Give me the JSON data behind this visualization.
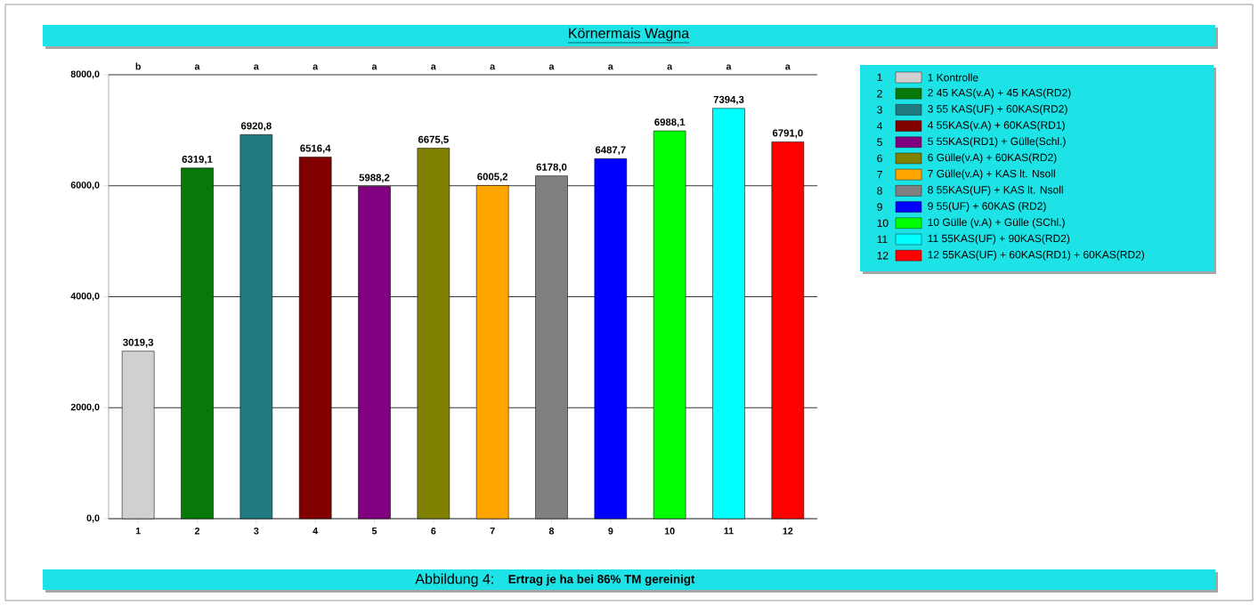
{
  "chart_data": {
    "type": "bar",
    "title": "Körnermais Wagna",
    "categories": [
      "1",
      "2",
      "3",
      "4",
      "5",
      "6",
      "7",
      "8",
      "9",
      "10",
      "11",
      "12"
    ],
    "series": [
      {
        "name": "1 Kontrolle",
        "color": "#d0d0d0",
        "values": [
          3019.3,
          null,
          null,
          null,
          null,
          null,
          null,
          null,
          null,
          null,
          null,
          null
        ]
      },
      {
        "name": "2 45 KAS(v.A) + 45 KAS(RD2)",
        "color": "#087808",
        "values": [
          null,
          6319.1,
          null,
          null,
          null,
          null,
          null,
          null,
          null,
          null,
          null,
          null
        ]
      },
      {
        "name": "3 55 KAS(UF) + 60KAS(RD2)",
        "color": "#1f7a82",
        "values": [
          null,
          null,
          6920.8,
          null,
          null,
          null,
          null,
          null,
          null,
          null,
          null,
          null
        ]
      },
      {
        "name": "4 55KAS(v.A) + 60KAS(RD1)",
        "color": "#800000",
        "values": [
          null,
          null,
          null,
          6516.4,
          null,
          null,
          null,
          null,
          null,
          null,
          null,
          null
        ]
      },
      {
        "name": "5 55KAS(RD1) + Gülle(Schl.)",
        "color": "#800080",
        "values": [
          null,
          null,
          null,
          null,
          5988.2,
          null,
          null,
          null,
          null,
          null,
          null,
          null
        ]
      },
      {
        "name": "6 Gülle(v.A) + 60KAS(RD2)",
        "color": "#808000",
        "values": [
          null,
          null,
          null,
          null,
          null,
          6675.5,
          null,
          null,
          null,
          null,
          null,
          null
        ]
      },
      {
        "name": "7 Gülle(v.A) + KAS lt. Nsoll",
        "color": "#ffa500",
        "values": [
          null,
          null,
          null,
          null,
          null,
          null,
          6005.2,
          null,
          null,
          null,
          null,
          null
        ]
      },
      {
        "name": "8 55KAS(UF) + KAS lt. Nsoll",
        "color": "#808080",
        "values": [
          null,
          null,
          null,
          null,
          null,
          null,
          null,
          6178.0,
          null,
          null,
          null,
          null
        ]
      },
      {
        "name": "9 55(UF) + 60KAS (RD2)",
        "color": "#0000ff",
        "values": [
          null,
          null,
          null,
          null,
          null,
          null,
          null,
          null,
          6487.7,
          null,
          null,
          null
        ]
      },
      {
        "name": "10 Gülle (v.A) + Gülle (SChl.)",
        "color": "#00ff00",
        "values": [
          null,
          null,
          null,
          null,
          null,
          null,
          null,
          null,
          null,
          6988.1,
          null,
          null
        ]
      },
      {
        "name": "11 55KAS(UF) + 90KAS(RD2)",
        "color": "#00ffff",
        "values": [
          null,
          null,
          null,
          null,
          null,
          null,
          null,
          null,
          null,
          null,
          7394.3,
          null
        ]
      },
      {
        "name": "12 55KAS(UF) + 60KAS(RD1) + 60KAS(RD2)",
        "color": "#ff0000",
        "values": [
          null,
          null,
          null,
          null,
          null,
          null,
          null,
          null,
          null,
          null,
          null,
          6791.0
        ]
      }
    ],
    "value_labels": [
      "3019,3",
      "6319,1",
      "6920,8",
      "6516,4",
      "5988,2",
      "6675,5",
      "6005,2",
      "6178,0",
      "6487,7",
      "6988,1",
      "7394,3",
      "6791,0"
    ],
    "ylim": [
      0,
      8000
    ],
    "yticks": [
      {
        "value": 0,
        "label": "0,0"
      },
      {
        "value": 2000,
        "label": "2000,0"
      },
      {
        "value": 4000,
        "label": "4000,0"
      },
      {
        "value": 6000,
        "label": "6000,0"
      },
      {
        "value": 8000,
        "label": "8000,0"
      }
    ],
    "grid": "y",
    "legend": "right",
    "annotations": [
      "b",
      "a",
      "a",
      "a",
      "a",
      "a",
      "a",
      "a",
      "a",
      "a",
      "a",
      "a",
      "Abbildung 4:",
      "Ertrag je ha bei 86% TM gereinigt"
    ]
  }
}
